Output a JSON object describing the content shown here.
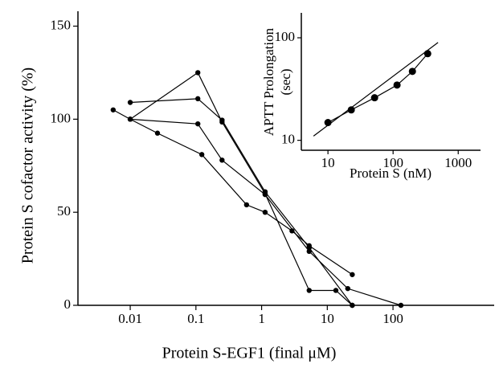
{
  "chart_data": [
    {
      "type": "line",
      "xscale": "log",
      "yscale": "linear",
      "x_label": "Protein S-EGF1 (final μM)",
      "y_label": "Protein S cofactor activity (%)",
      "xlim": [
        0.0016,
        3470
      ],
      "ylim": [
        0,
        158
      ],
      "xticks": [
        0.01,
        0.1,
        1,
        10,
        100
      ],
      "yticks": [
        0,
        50,
        100,
        150
      ],
      "series": [
        {
          "color": "#000000",
          "marker": true,
          "x": [
            0.0055,
            0.01,
            0.026,
            0.123,
            0.59,
            1.13,
            2.9,
            5.3,
            24
          ],
          "values": [
            105,
            100,
            92.5,
            81,
            54,
            50,
            40,
            32,
            16.5
          ]
        },
        {
          "color": "#000000",
          "marker": true,
          "x": [
            0.01,
            0.107,
            0.25,
            1.13,
            5.3,
            24
          ],
          "values": [
            109,
            111,
            99.5,
            61,
            31,
            0
          ]
        },
        {
          "color": "#000000",
          "marker": true,
          "x": [
            0.01,
            0.107,
            0.25,
            1.13,
            5.3,
            13.5,
            24
          ],
          "values": [
            100,
            125,
            98.5,
            60,
            8,
            8,
            0
          ]
        },
        {
          "color": "#000000",
          "marker": true,
          "x": [
            0.01,
            0.107,
            0.25,
            1.13,
            5.3,
            20.5,
            132
          ],
          "values": [
            100,
            97.5,
            78,
            59.5,
            29,
            9,
            0
          ]
        }
      ]
    },
    {
      "type": "line",
      "xscale": "log",
      "yscale": "log",
      "x_label": "Protein S (nM)",
      "y_label": [
        "APTT Prolongation",
        "(sec)"
      ],
      "xlim": [
        3.9,
        2200
      ],
      "ylim": [
        8,
        175
      ],
      "xticks": [
        10,
        100,
        1000
      ],
      "yticks": [
        10,
        100
      ],
      "series": [
        {
          "color": "#000000",
          "marker": true,
          "x": [
            10,
            22.8,
            52,
            115,
            198,
            340
          ],
          "values": [
            14.9,
            19.8,
            26,
            34.6,
            47,
            70
          ]
        },
        {
          "color": "#000000",
          "marker": false,
          "x": [
            6,
            490
          ],
          "values": [
            11,
            90
          ]
        }
      ]
    }
  ]
}
